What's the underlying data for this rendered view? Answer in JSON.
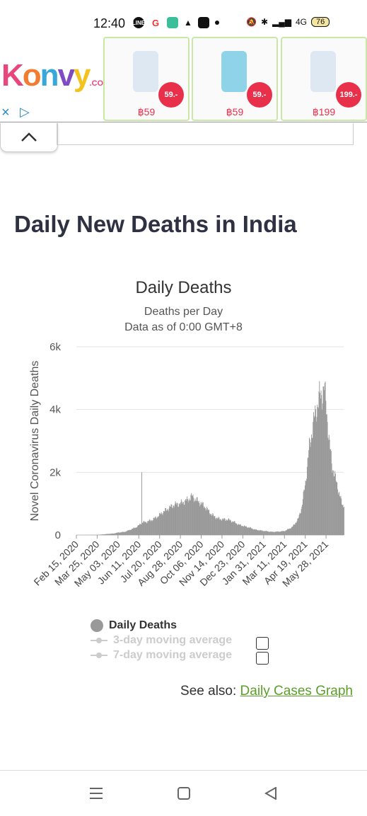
{
  "status_bar": {
    "time": "12:40",
    "icons": [
      "line-icon",
      "google-icon",
      "square-app-icon",
      "nav-arrow-icon",
      "app-icon",
      "dot-icon",
      "mute-icon",
      "bluetooth-icon",
      "signal-icon",
      "4g-signal-icon"
    ],
    "line_label": "LINE",
    "google_label": "G",
    "network": "4G",
    "battery": "76"
  },
  "ad": {
    "brand_letters": [
      "K",
      "o",
      "n",
      "v",
      "y"
    ],
    "brand_suffix": ".COM",
    "close_label": "×",
    "adchoice_label": "▷",
    "products": [
      {
        "badge": "59.-",
        "price": "฿59"
      },
      {
        "badge": "59.-",
        "price": "฿59"
      },
      {
        "badge": "199.-",
        "price": "฿199"
      }
    ]
  },
  "page": {
    "title": "Daily New Deaths in India"
  },
  "chart_data": {
    "type": "bar",
    "title": "Daily Deaths",
    "subtitle_lines": [
      "Deaths per Day",
      "Data as of 0:00 GMT+8"
    ],
    "ylabel": "Novel Coronavirus Daily Deaths",
    "xlabel": "",
    "ylim": [
      0,
      6000
    ],
    "y_ticks": [
      {
        "value": 0,
        "label": "0"
      },
      {
        "value": 2000,
        "label": "2k"
      },
      {
        "value": 4000,
        "label": "4k"
      },
      {
        "value": 6000,
        "label": "6k"
      }
    ],
    "x_tick_labels": [
      "Feb 15, 2020",
      "Mar 25, 2020",
      "May 03, 2020",
      "Jun 11, 2020",
      "Jul 20, 2020",
      "Aug 28, 2020",
      "Oct 06, 2020",
      "Nov 14, 2020",
      "Dec 23, 2020",
      "Jan 31, 2021",
      "Mar 11, 2021",
      "Apr 19, 2021",
      "May 28, 2021"
    ],
    "grid": true,
    "series": [
      {
        "name": "Daily Deaths",
        "color": "#999999",
        "points": [
          [
            "2020-02-15",
            0
          ],
          [
            "2020-03-25",
            5
          ],
          [
            "2020-04-10",
            30
          ],
          [
            "2020-04-25",
            50
          ],
          [
            "2020-05-03",
            80
          ],
          [
            "2020-05-15",
            100
          ],
          [
            "2020-05-30",
            200
          ],
          [
            "2020-06-08",
            270
          ],
          [
            "2020-06-15",
            380
          ],
          [
            "2020-06-16",
            1990
          ],
          [
            "2020-06-17",
            400
          ],
          [
            "2020-06-25",
            420
          ],
          [
            "2020-07-05",
            480
          ],
          [
            "2020-07-15",
            580
          ],
          [
            "2020-07-25",
            720
          ],
          [
            "2020-08-05",
            850
          ],
          [
            "2020-08-15",
            960
          ],
          [
            "2020-08-28",
            1010
          ],
          [
            "2020-09-10",
            1120
          ],
          [
            "2020-09-18",
            1240
          ],
          [
            "2020-09-25",
            1130
          ],
          [
            "2020-10-06",
            1000
          ],
          [
            "2020-10-15",
            850
          ],
          [
            "2020-10-25",
            650
          ],
          [
            "2020-11-05",
            530
          ],
          [
            "2020-11-14",
            500
          ],
          [
            "2020-11-25",
            490
          ],
          [
            "2020-12-05",
            420
          ],
          [
            "2020-12-15",
            330
          ],
          [
            "2020-12-23",
            290
          ],
          [
            "2021-01-05",
            230
          ],
          [
            "2021-01-15",
            170
          ],
          [
            "2021-01-31",
            130
          ],
          [
            "2021-02-15",
            100
          ],
          [
            "2021-03-01",
            110
          ],
          [
            "2021-03-11",
            130
          ],
          [
            "2021-03-25",
            250
          ],
          [
            "2021-04-05",
            500
          ],
          [
            "2021-04-12",
            900
          ],
          [
            "2021-04-19",
            1700
          ],
          [
            "2021-04-26",
            2800
          ],
          [
            "2021-05-03",
            3500
          ],
          [
            "2021-05-09",
            4000
          ],
          [
            "2021-05-15",
            4400
          ],
          [
            "2021-05-20",
            4500
          ],
          [
            "2021-05-24",
            4700
          ],
          [
            "2021-05-28",
            4100
          ],
          [
            "2021-06-02",
            3000
          ],
          [
            "2021-06-08",
            2200
          ],
          [
            "2021-06-14",
            1800
          ],
          [
            "2021-06-20",
            1400
          ],
          [
            "2021-06-26",
            1000
          ],
          [
            "2021-06-30",
            900
          ]
        ]
      }
    ],
    "legend": [
      {
        "label": "Daily Deaths",
        "active": true,
        "color": "#999999"
      },
      {
        "label": "3-day moving average",
        "active": false,
        "color": "#cccccc"
      },
      {
        "label": "7-day moving average",
        "active": false,
        "color": "#cccccc"
      }
    ]
  },
  "see_also": {
    "prefix": "See also: ",
    "link": "Daily Cases Graph"
  },
  "nav": {
    "buttons": [
      "recent-apps-icon",
      "home-icon",
      "back-icon"
    ]
  }
}
